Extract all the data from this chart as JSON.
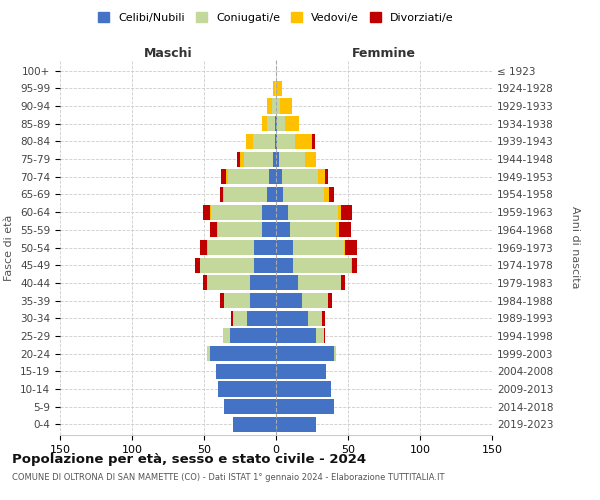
{
  "age_groups": [
    "0-4",
    "5-9",
    "10-14",
    "15-19",
    "20-24",
    "25-29",
    "30-34",
    "35-39",
    "40-44",
    "45-49",
    "50-54",
    "55-59",
    "60-64",
    "65-69",
    "70-74",
    "75-79",
    "80-84",
    "85-89",
    "90-94",
    "95-99",
    "100+"
  ],
  "birth_years": [
    "2019-2023",
    "2014-2018",
    "2009-2013",
    "2004-2008",
    "1999-2003",
    "1994-1998",
    "1989-1993",
    "1984-1988",
    "1979-1983",
    "1974-1978",
    "1969-1973",
    "1964-1968",
    "1959-1963",
    "1954-1958",
    "1949-1953",
    "1944-1948",
    "1939-1943",
    "1934-1938",
    "1929-1933",
    "1924-1928",
    "≤ 1923"
  ],
  "males": {
    "celibi": [
      30,
      36,
      40,
      42,
      46,
      32,
      20,
      18,
      18,
      15,
      15,
      10,
      10,
      6,
      5,
      2,
      1,
      1,
      0,
      0,
      0
    ],
    "coniugati": [
      0,
      0,
      0,
      0,
      2,
      5,
      10,
      18,
      30,
      38,
      32,
      30,
      35,
      30,
      28,
      20,
      15,
      5,
      3,
      1,
      0
    ],
    "vedovi": [
      0,
      0,
      0,
      0,
      0,
      0,
      0,
      0,
      0,
      0,
      1,
      1,
      1,
      1,
      2,
      3,
      5,
      4,
      3,
      1,
      0
    ],
    "divorziati": [
      0,
      0,
      0,
      0,
      0,
      0,
      1,
      3,
      3,
      3,
      5,
      5,
      5,
      2,
      3,
      2,
      0,
      0,
      0,
      0,
      0
    ]
  },
  "females": {
    "nubili": [
      28,
      40,
      38,
      35,
      40,
      28,
      22,
      18,
      15,
      12,
      12,
      10,
      8,
      5,
      4,
      2,
      1,
      1,
      0,
      0,
      0
    ],
    "coniugate": [
      0,
      0,
      0,
      0,
      2,
      5,
      10,
      18,
      30,
      40,
      35,
      32,
      35,
      28,
      25,
      18,
      12,
      5,
      3,
      0,
      0
    ],
    "vedove": [
      0,
      0,
      0,
      0,
      0,
      0,
      0,
      0,
      0,
      1,
      1,
      2,
      2,
      4,
      5,
      8,
      12,
      10,
      8,
      4,
      0
    ],
    "divorziate": [
      0,
      0,
      0,
      0,
      0,
      1,
      2,
      3,
      3,
      3,
      8,
      8,
      8,
      3,
      2,
      0,
      2,
      0,
      0,
      0,
      0
    ]
  },
  "color_celibi": "#4472c4",
  "color_coniugati": "#c5d89c",
  "color_vedovi": "#ffc000",
  "color_divorziati": "#c00000",
  "title": "Popolazione per età, sesso e stato civile - 2024",
  "subtitle": "COMUNE DI OLTRONA DI SAN MAMETTE (CO) - Dati ISTAT 1° gennaio 2024 - Elaborazione TUTTITALIA.IT",
  "xlabel_left": "Maschi",
  "xlabel_right": "Femmine",
  "ylabel_left": "Fasce di età",
  "ylabel_right": "Anni di nascita",
  "xlim": 150,
  "background_color": "#ffffff",
  "grid_color": "#cccccc"
}
